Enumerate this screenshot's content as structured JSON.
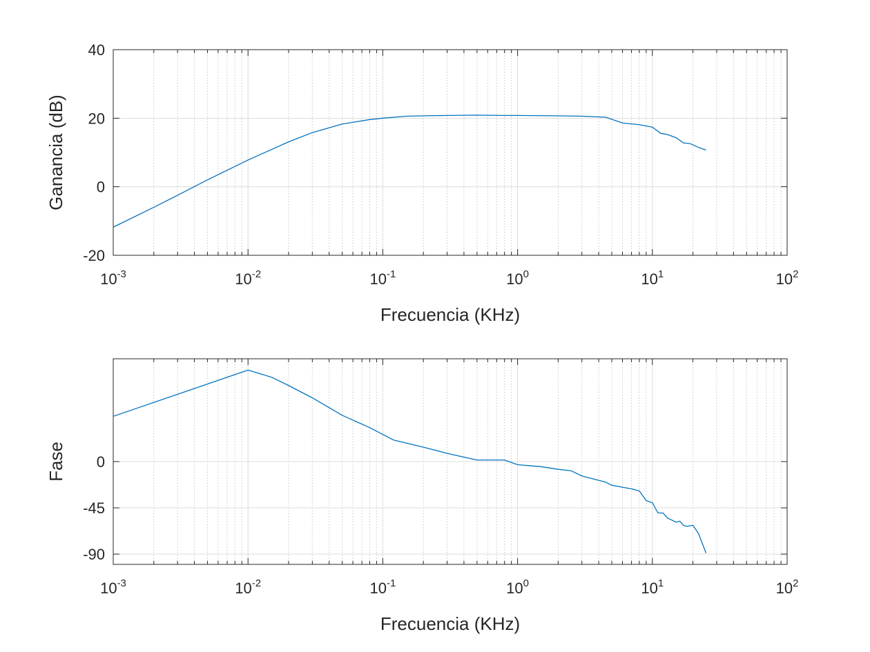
{
  "chart_data": [
    {
      "type": "line",
      "xscale": "log",
      "xlim": [
        0.001,
        100
      ],
      "ylim": [
        -20,
        40
      ],
      "xlabel": "Frecuencia (KHz)",
      "ylabel": "Ganancia (dB)",
      "grid": true,
      "x_ticks": [
        {
          "base": "10",
          "exp": "-3",
          "value": 0.001
        },
        {
          "base": "10",
          "exp": "-2",
          "value": 0.01
        },
        {
          "base": "10",
          "exp": "-1",
          "value": 0.1
        },
        {
          "base": "10",
          "exp": "0",
          "value": 1
        },
        {
          "base": "10",
          "exp": "1",
          "value": 10
        },
        {
          "base": "10",
          "exp": "2",
          "value": 100
        }
      ],
      "y_ticks": [
        {
          "label": "40",
          "value": 40
        },
        {
          "label": "20",
          "value": 20
        },
        {
          "label": "0",
          "value": 0
        },
        {
          "label": "-20",
          "value": -20
        }
      ],
      "color": "#0072BD",
      "series": [
        {
          "x": [
            0.001,
            0.002,
            0.003,
            0.005,
            0.01,
            0.02,
            0.03,
            0.05,
            0.08,
            0.1,
            0.15,
            0.2,
            0.3,
            0.5,
            0.8,
            1,
            2,
            3,
            4.5,
            6,
            8,
            10,
            11.5,
            13,
            15,
            17,
            19,
            22,
            25
          ],
          "y": [
            -11.8,
            -6,
            -2.5,
            2,
            7.8,
            13.1,
            15.8,
            18.3,
            19.6,
            20.0,
            20.6,
            20.7,
            20.8,
            20.9,
            20.8,
            20.8,
            20.7,
            20.6,
            20.3,
            18.6,
            18.1,
            17.4,
            15.6,
            15.2,
            14.3,
            12.8,
            12.6,
            11.5,
            10.7
          ]
        }
      ]
    },
    {
      "type": "line",
      "xscale": "log",
      "xlim": [
        0.001,
        100
      ],
      "ylim": [
        -100,
        100
      ],
      "xlabel": "Frecuencia (KHz)",
      "ylabel": "Fase",
      "grid": true,
      "x_ticks": [
        {
          "base": "10",
          "exp": "-3",
          "value": 0.001
        },
        {
          "base": "10",
          "exp": "-2",
          "value": 0.01
        },
        {
          "base": "10",
          "exp": "-1",
          "value": 0.1
        },
        {
          "base": "10",
          "exp": "0",
          "value": 1
        },
        {
          "base": "10",
          "exp": "1",
          "value": 10
        },
        {
          "base": "10",
          "exp": "2",
          "value": 100
        }
      ],
      "y_ticks": [
        {
          "label": "0",
          "value": 0
        },
        {
          "label": "-45",
          "value": -45
        },
        {
          "label": "-90",
          "value": -90
        }
      ],
      "color": "#0072BD",
      "series": [
        {
          "x": [
            0.001,
            0.01,
            0.015,
            0.02,
            0.03,
            0.05,
            0.08,
            0.12,
            0.2,
            0.3,
            0.5,
            0.8,
            1,
            1.5,
            2,
            2.5,
            3,
            4.5,
            5,
            6,
            7,
            8,
            9,
            10,
            11,
            12,
            13,
            14,
            15,
            16,
            17,
            18,
            20,
            22,
            25
          ],
          "y": [
            44,
            89,
            82,
            74,
            62,
            45,
            33,
            21,
            14,
            8,
            1.5,
            1.5,
            -3,
            -5,
            -7.5,
            -9,
            -14,
            -20,
            -23,
            -25,
            -26.5,
            -28.5,
            -38,
            -40,
            -50,
            -50,
            -55,
            -57,
            -59,
            -58,
            -62,
            -63,
            -62,
            -70,
            -89
          ]
        }
      ]
    }
  ]
}
